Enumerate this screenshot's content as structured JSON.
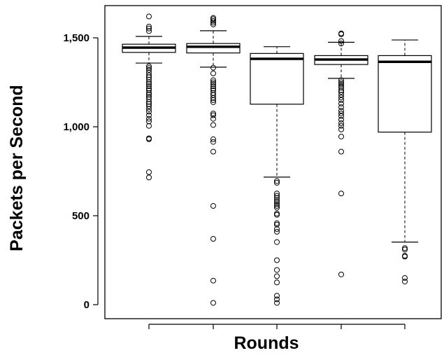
{
  "chart_data": {
    "type": "boxplot",
    "title": "",
    "xlabel": "Rounds",
    "ylabel": "Packets per Second",
    "ylim": [
      -10,
      1680
    ],
    "yticks": [
      0,
      500,
      1000,
      1500
    ],
    "ytick_labels": [
      "0",
      "500",
      "1,000",
      "1,500"
    ],
    "categories": [
      "",
      "",
      "",
      "",
      ""
    ],
    "grid": false,
    "boxes": [
      {
        "whisker_low": 1358,
        "q1": 1418,
        "median": 1445,
        "q3": 1464,
        "whisker_high": 1508,
        "outliers": [
          1620,
          1563,
          1552,
          1538,
          1340,
          1330,
          1320,
          1305,
          1290,
          1278,
          1265,
          1250,
          1240,
          1228,
          1215,
          1205,
          1190,
          1180,
          1168,
          1155,
          1140,
          1128,
          1115,
          1100,
          1085,
          1065,
          1045,
          1030,
          1005,
          935,
          930,
          745,
          715
        ]
      },
      {
        "whisker_low": 1335,
        "q1": 1415,
        "median": 1450,
        "q3": 1468,
        "whisker_high": 1540,
        "outliers": [
          1612,
          1605,
          1595,
          1585,
          1575,
          1332,
          1300,
          1262,
          1250,
          1240,
          1228,
          1215,
          1205,
          1190,
          1178,
          1162,
          1150,
          1138,
          1075,
          1065,
          1045,
          1010,
          930,
          915,
          860,
          555,
          370,
          135,
          10
        ]
      },
      {
        "whisker_low": 717,
        "q1": 1127,
        "median": 1382,
        "q3": 1412,
        "whisker_high": 1450,
        "outliers": [
          695,
          685,
          625,
          612,
          600,
          588,
          578,
          565,
          555,
          545,
          512,
          505,
          458,
          450,
          425,
          410,
          352,
          250,
          195,
          160,
          125,
          50,
          30,
          10
        ]
      },
      {
        "whisker_low": 1272,
        "q1": 1350,
        "median": 1378,
        "q3": 1400,
        "whisker_high": 1475,
        "outliers": [
          1525,
          1520,
          1482,
          1468,
          1262,
          1250,
          1240,
          1230,
          1220,
          1205,
          1195,
          1180,
          1165,
          1150,
          1130,
          1110,
          1090,
          1075,
          1060,
          1040,
          1020,
          1005,
          985,
          945,
          860,
          625,
          170
        ]
      },
      {
        "whisker_low": 352,
        "q1": 970,
        "median": 1365,
        "q3": 1400,
        "whisker_high": 1488,
        "outliers": [
          318,
          310,
          275,
          270,
          150,
          130
        ]
      }
    ]
  }
}
